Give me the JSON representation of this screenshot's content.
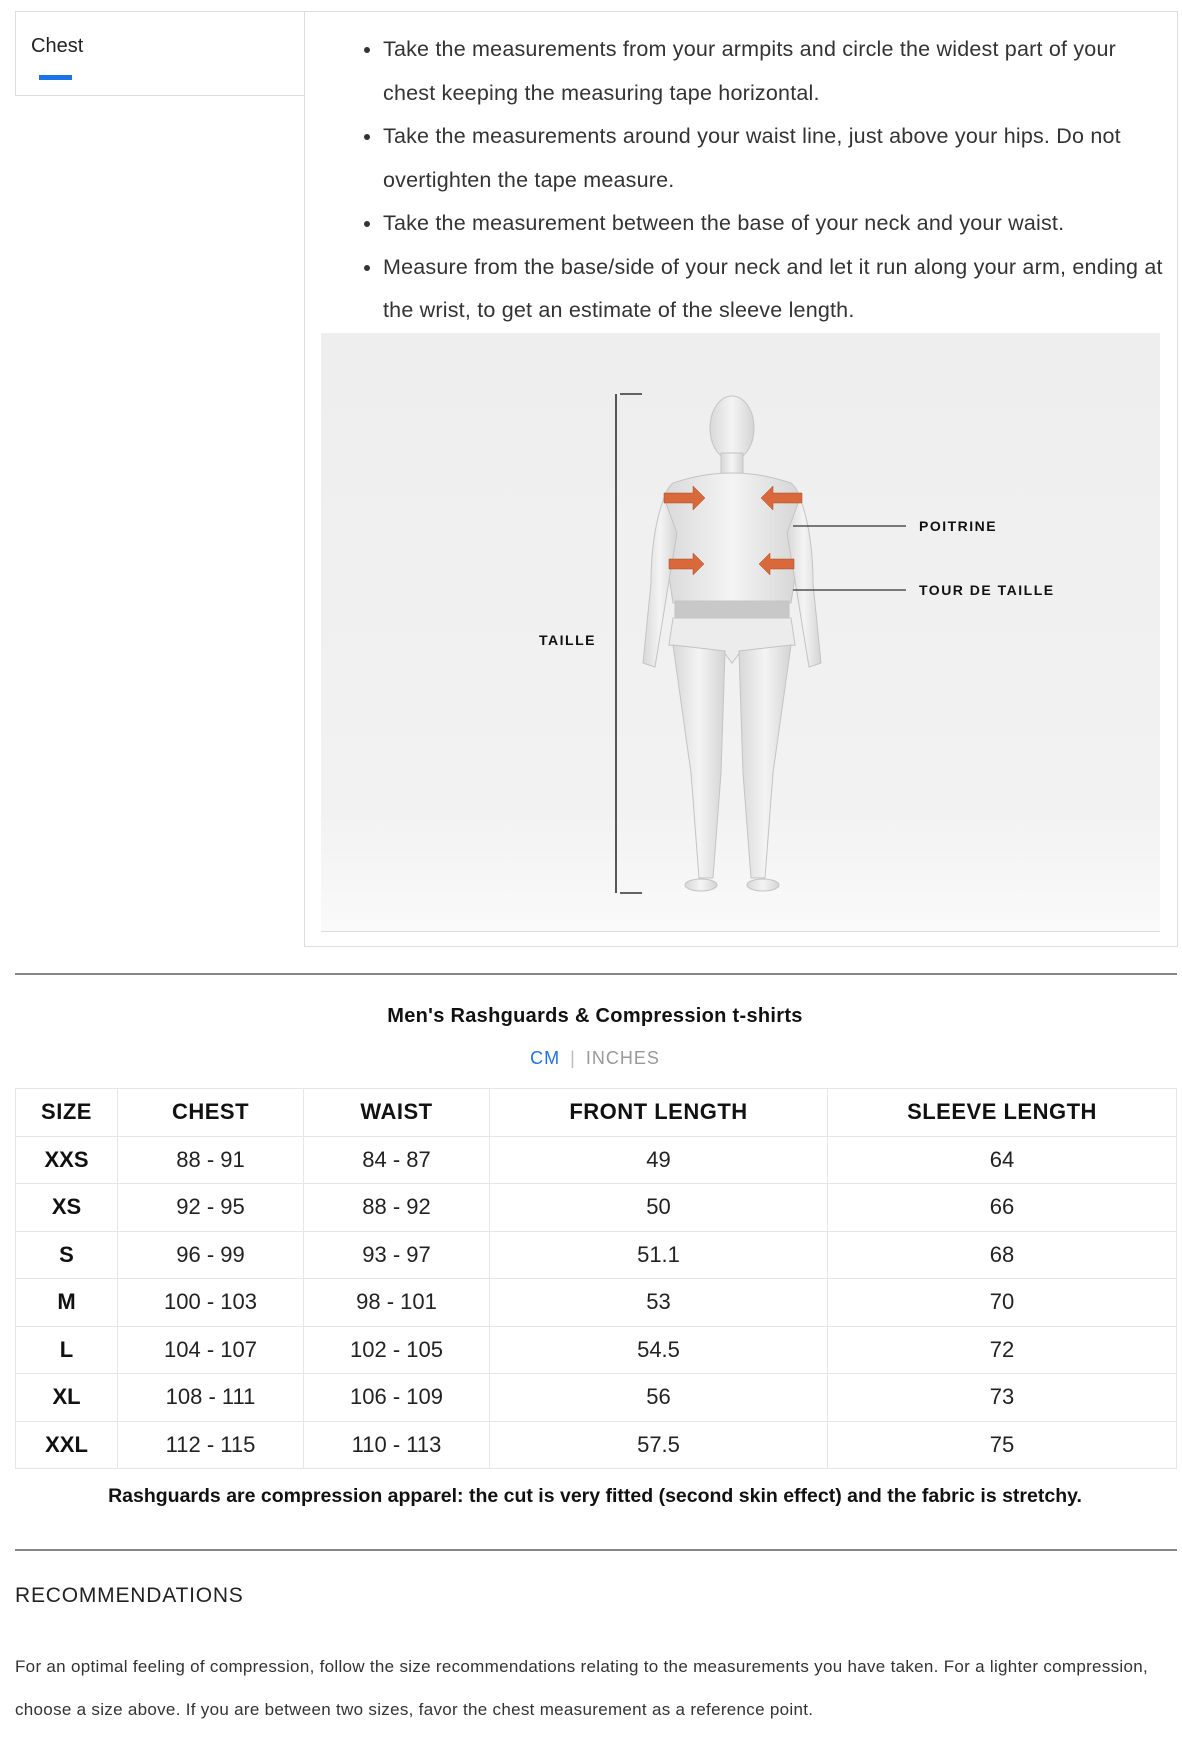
{
  "tabs": [
    {
      "label": "Chest",
      "active": true
    }
  ],
  "accent_color": "#1a73e8",
  "instructions": [
    "Take the measurements from your armpits and circle the widest part of your chest keeping the measuring tape horizontal.",
    "Take the measurements around your waist line, just above your hips. Do not overtighten the tape measure.",
    "Take the measurement between the base of your neck and your waist.",
    "Measure from the base/side of your neck and let it run along your arm, ending at the wrist, to get an estimate of the sleeve length."
  ],
  "figure": {
    "labels": {
      "chest": "POITRINE",
      "waist": "TOUR DE TAILLE",
      "height": "TAILLE"
    },
    "arrow_color": "#d9693a"
  },
  "size_chart": {
    "title": "Men's Rashguards & Compression t-shirts",
    "units": {
      "selected": "CM",
      "options": [
        "CM",
        "INCHES"
      ]
    },
    "headers": [
      "SIZE",
      "CHEST",
      "WAIST",
      "FRONT LENGTH",
      "SLEEVE LENGTH"
    ],
    "rows": [
      [
        "XXS",
        "88 - 91",
        "84 - 87",
        "49",
        "64"
      ],
      [
        "XS",
        "92 - 95",
        "88 - 92",
        "50",
        "66"
      ],
      [
        "S",
        "96 - 99",
        "93 - 97",
        "51.1",
        "68"
      ],
      [
        "M",
        "100 - 103",
        "98 - 101",
        "53",
        "70"
      ],
      [
        "L",
        "104 - 107",
        "102 - 105",
        "54.5",
        "72"
      ],
      [
        "XL",
        "108 - 111",
        "106 - 109",
        "56",
        "73"
      ],
      [
        "XXL",
        "112 - 115",
        "110 - 113",
        "57.5",
        "75"
      ]
    ],
    "note": "Rashguards are compression apparel: the cut is very fitted (second skin effect) and the fabric is stretchy."
  },
  "recommendations": {
    "title": "RECOMMENDATIONS",
    "text": "For an optimal feeling of compression, follow the size recommendations relating to the measurements you have taken. For a lighter compression, choose a size above. If you are between two sizes, favor the chest measurement as a reference point."
  }
}
